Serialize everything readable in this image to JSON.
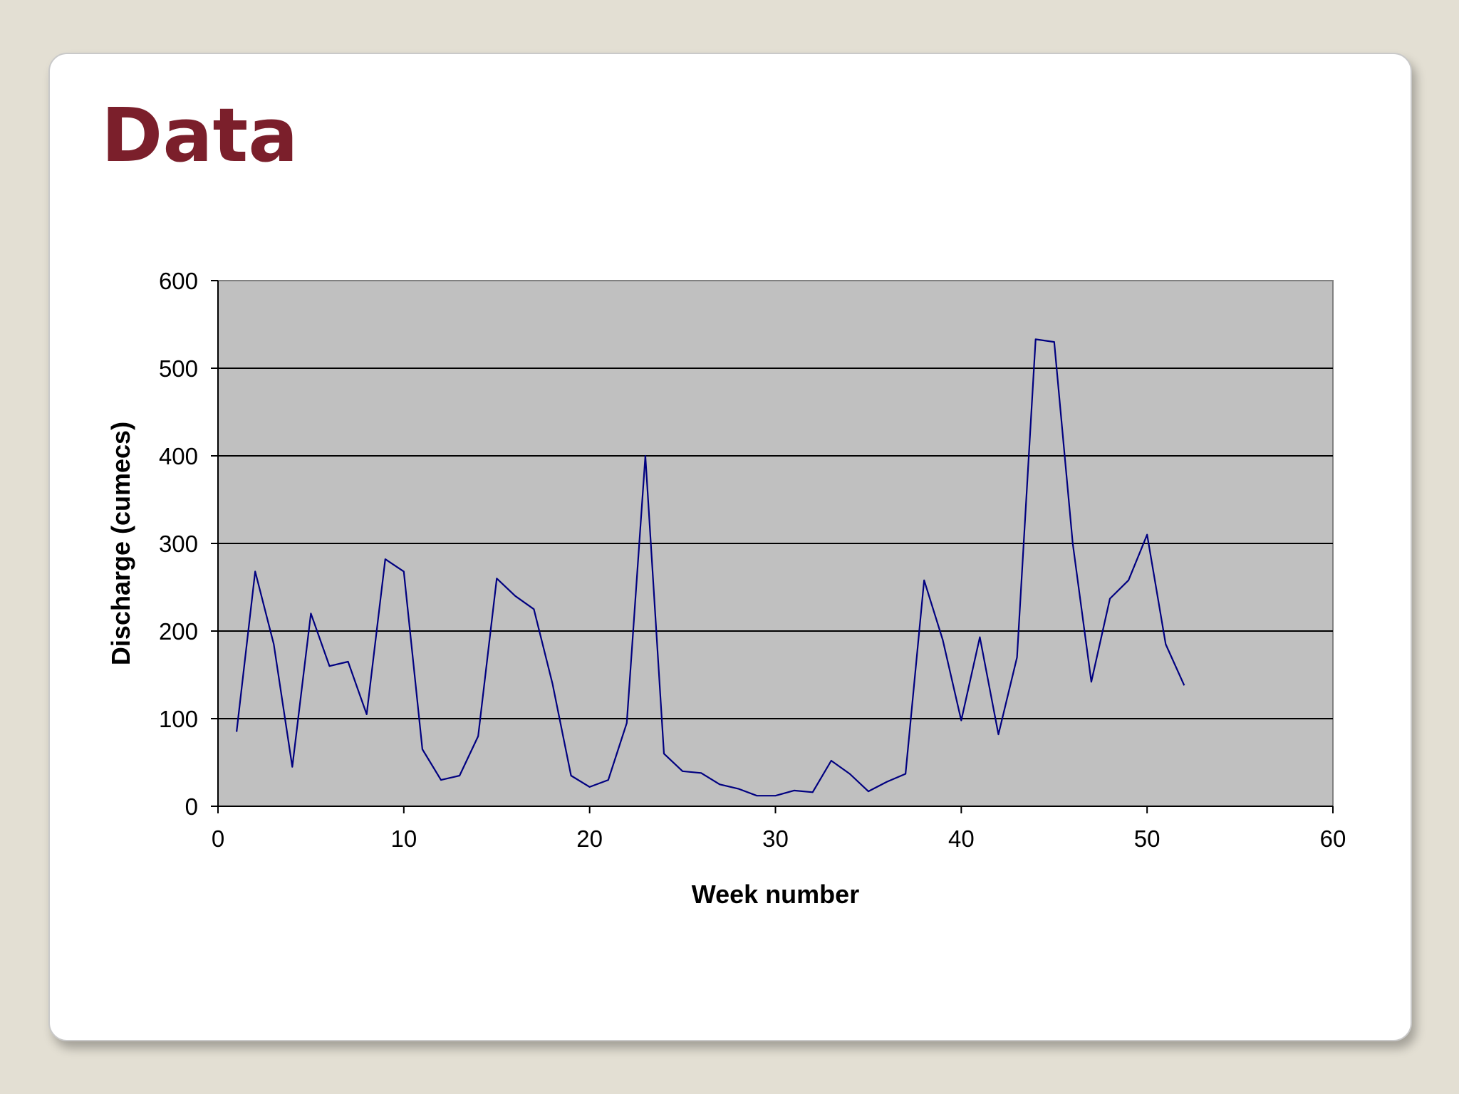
{
  "slide": {
    "title": "Data"
  },
  "chart_data": {
    "type": "line",
    "title": "",
    "xlabel": "Week number",
    "ylabel": "Discharge (cumecs)",
    "xlim": [
      0,
      60
    ],
    "ylim": [
      0,
      600
    ],
    "xticks": [
      0,
      10,
      20,
      30,
      40,
      50,
      60
    ],
    "yticks": [
      0,
      100,
      200,
      300,
      400,
      500,
      600
    ],
    "grid": "horizontal",
    "legend": "none",
    "plot_background": "#c0c0c0",
    "line_color": "#000080",
    "gridline_color": "#000000",
    "series": [
      {
        "x": [
          1,
          2,
          3,
          4,
          5,
          6,
          7,
          8,
          9,
          10,
          11,
          12,
          13,
          14,
          15,
          16,
          17,
          18,
          19,
          20,
          21,
          22,
          23,
          24,
          25,
          26,
          27,
          28,
          29,
          30,
          31,
          32,
          33,
          34,
          35,
          36,
          37,
          38,
          39,
          40,
          41,
          42,
          43,
          44,
          45,
          46,
          47,
          48,
          49,
          50,
          51,
          52
        ],
        "values": [
          85,
          268,
          185,
          45,
          220,
          160,
          165,
          105,
          282,
          268,
          65,
          30,
          35,
          80,
          260,
          240,
          225,
          140,
          35,
          22,
          30,
          95,
          400,
          60,
          40,
          38,
          25,
          20,
          12,
          12,
          18,
          16,
          52,
          37,
          17,
          28,
          37,
          258,
          190,
          98,
          193,
          82,
          170,
          533,
          530,
          300,
          142,
          237,
          258,
          310,
          185,
          138
        ]
      }
    ]
  }
}
